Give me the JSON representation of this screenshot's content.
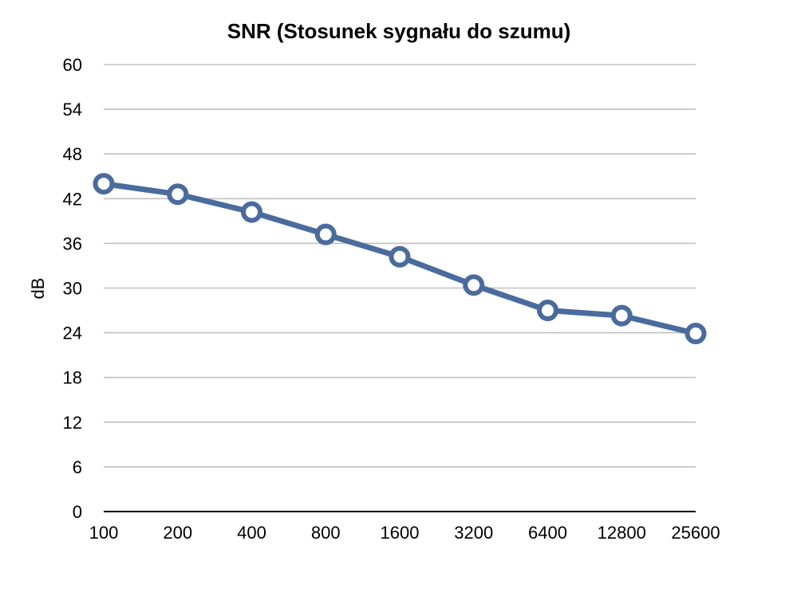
{
  "chart_data": {
    "type": "line",
    "title": "SNR (Stosunek sygnału do szumu)",
    "xlabel": "",
    "ylabel": "dB",
    "categories": [
      "100",
      "200",
      "400",
      "800",
      "1600",
      "3200",
      "6400",
      "12800",
      "25600"
    ],
    "series": [
      {
        "values": [
          44.0,
          42.6,
          40.2,
          37.2,
          34.2,
          30.4,
          27.0,
          26.3,
          23.9
        ]
      }
    ],
    "ylim": [
      0,
      60
    ],
    "yticks": [
      0,
      6,
      12,
      18,
      24,
      30,
      36,
      42,
      48,
      54,
      60
    ],
    "grid": true,
    "legend": "none",
    "colors": {
      "line": "#4a6b9d",
      "marker_fill": "#ffffff",
      "grid": "#c0c0c0",
      "axis": "#000000"
    }
  }
}
